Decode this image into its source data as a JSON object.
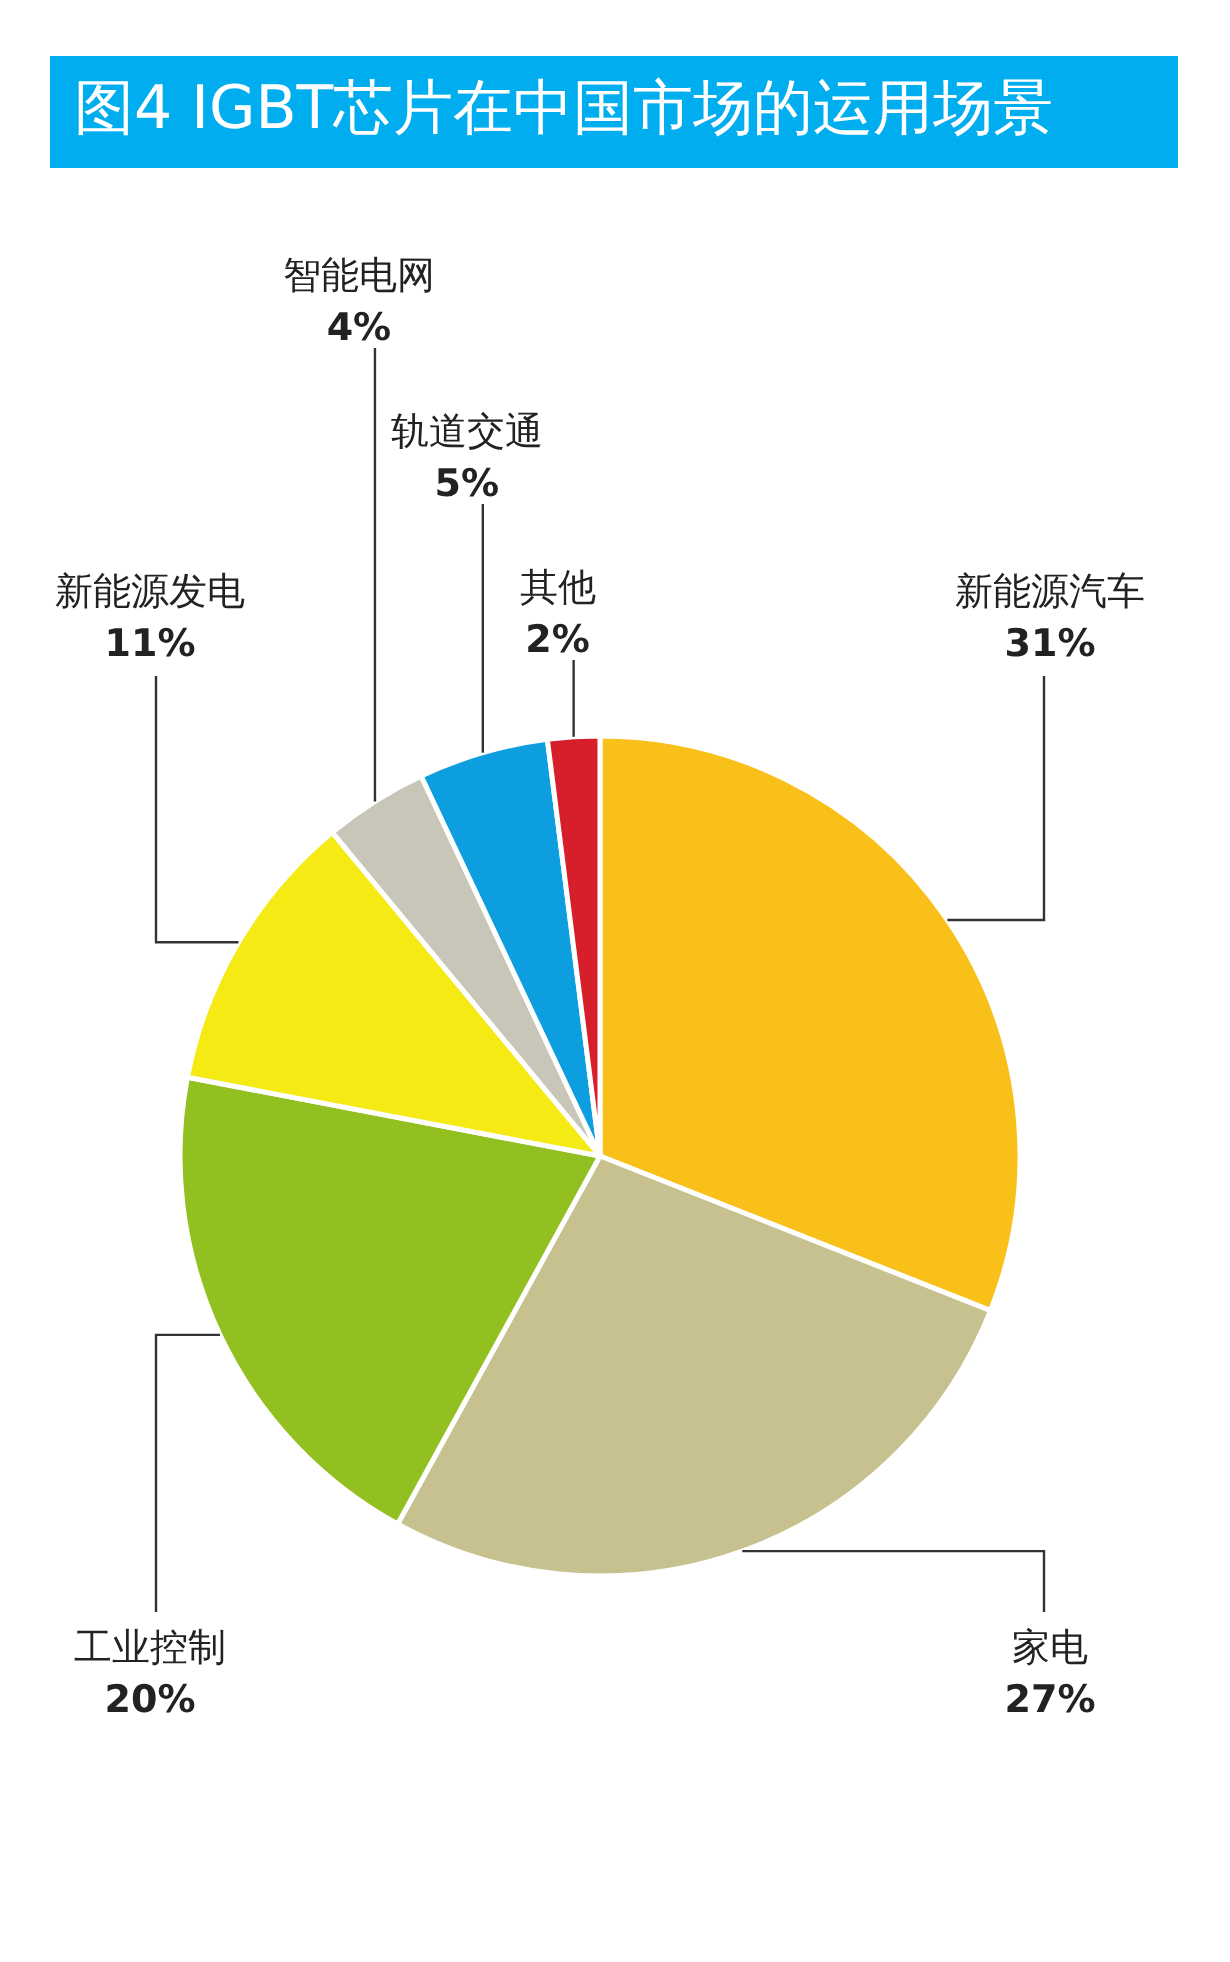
{
  "chart_data": {
    "type": "pie",
    "title": "图4  IGBT芯片在中国市场的运用场景",
    "categories": [
      "新能源汽车",
      "家电",
      "工业控制",
      "新能源发电",
      "智能电网",
      "轨道交通",
      "其他"
    ],
    "values": [
      31,
      27,
      20,
      11,
      4,
      5,
      2
    ],
    "value_labels": [
      "31%",
      "27%",
      "20%",
      "11%",
      "4%",
      "5%",
      "2%"
    ],
    "colors": [
      "#f9c01a",
      "#c6c18e",
      "#93c021",
      "#f6ea15",
      "#c8c6b8",
      "#0d9ee0",
      "#d71e2b"
    ]
  }
}
